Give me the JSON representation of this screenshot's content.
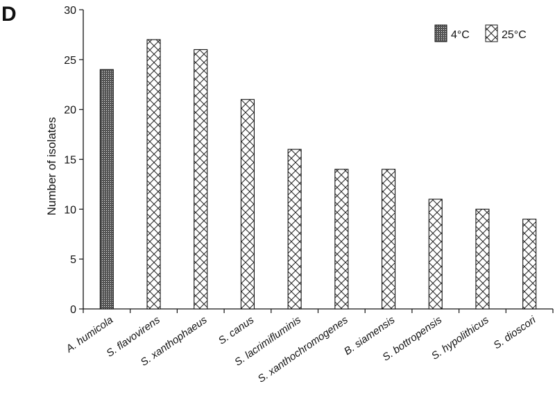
{
  "figure": {
    "panel_label": "D"
  },
  "chart_data": {
    "type": "bar",
    "title": "",
    "xlabel": "",
    "ylabel": "Number of isolates",
    "ylim": [
      0,
      30
    ],
    "yticks": [
      0,
      5,
      10,
      15,
      20,
      25,
      30
    ],
    "grid": false,
    "legend_position": "top-right",
    "categories": [
      "A. humicola",
      "S. flavovirens",
      "S. xanthophaeus",
      "S. canus",
      "S. lacrimifluminis",
      "S. xanthochromogenes",
      "B. siamensis",
      "S. bottropensis",
      "S. hypolithicus",
      "S. dioscori"
    ],
    "series": [
      {
        "name": "4°C",
        "pattern": "dense-dotted-grid",
        "values": [
          24,
          null,
          null,
          null,
          null,
          null,
          null,
          null,
          null,
          null
        ]
      },
      {
        "name": "25°C",
        "pattern": "crosshatch",
        "values": [
          null,
          27,
          26,
          21,
          16,
          14,
          14,
          11,
          10,
          9
        ]
      }
    ],
    "colors": {
      "bar_outline": "#111111",
      "hatch": "#111111",
      "fill": "#ffffff"
    }
  }
}
